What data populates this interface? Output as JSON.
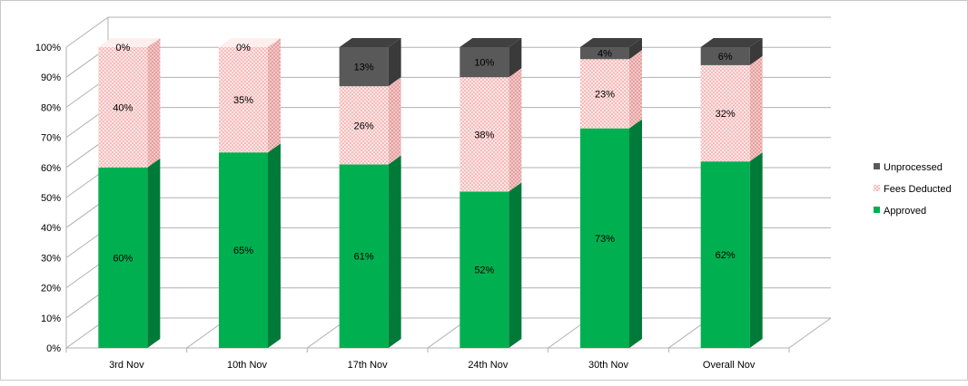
{
  "chart_data": {
    "type": "bar",
    "stacked": true,
    "three_d": true,
    "categories": [
      "3rd Nov",
      "10th Nov",
      "17th Nov",
      "24th Nov",
      "30th Nov",
      "Overall Nov"
    ],
    "series": [
      {
        "name": "Approved",
        "values": [
          60,
          65,
          61,
          52,
          73,
          62
        ],
        "labels": [
          "60%",
          "65%",
          "61%",
          "52%",
          "73%",
          "62%"
        ],
        "color": "#00b050",
        "side_color": "#007a38",
        "top_color": "#33c070"
      },
      {
        "name": "Fees Deducted",
        "values": [
          40,
          35,
          26,
          38,
          23,
          32
        ],
        "labels": [
          "40%",
          "35%",
          "26%",
          "38%",
          "23%",
          "32%"
        ],
        "color": "#ffe4e4",
        "side_color": "#e8b8b8",
        "top_color": "#fff0f0",
        "pattern_color": "#e98a8a"
      },
      {
        "name": "Unprocessed",
        "values": [
          0,
          0,
          13,
          10,
          4,
          6
        ],
        "labels": [
          "0%",
          "0%",
          "13%",
          "10%",
          "4%",
          "6%"
        ],
        "color": "#595959",
        "side_color": "#3a3a3a",
        "top_color": "#4a4a4a"
      }
    ],
    "ylim": [
      0,
      100
    ],
    "y_ticks": [
      "0%",
      "10%",
      "20%",
      "30%",
      "40%",
      "50%",
      "60%",
      "70%",
      "80%",
      "90%",
      "100%"
    ],
    "legend_position": "right",
    "legend_order": [
      "Unprocessed",
      "Fees Deducted",
      "Approved"
    ],
    "grid": true,
    "colors": {
      "grid": "#b0b0b0",
      "text": "#000000"
    }
  }
}
